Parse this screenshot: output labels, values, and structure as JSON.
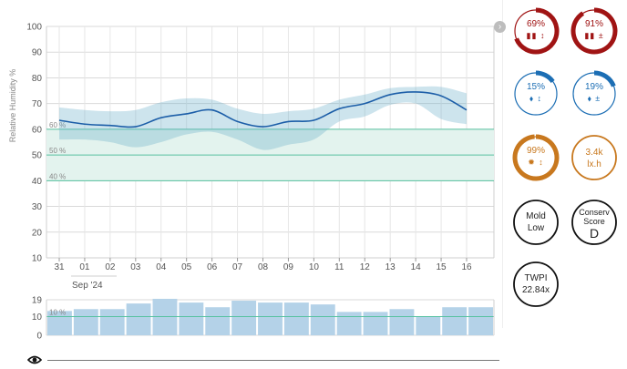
{
  "chart_data": [
    {
      "type": "line",
      "ylabel": "Relative Humidity %",
      "ylim": [
        10,
        100
      ],
      "yticks": [
        "10",
        "20",
        "30",
        "40",
        "50",
        "60",
        "70",
        "80",
        "90",
        "100"
      ],
      "categories": [
        "31",
        "01",
        "02",
        "03",
        "04",
        "05",
        "06",
        "07",
        "08",
        "09",
        "10",
        "11",
        "12",
        "13",
        "14",
        "15",
        "16"
      ],
      "xsublabel": "Sep '24",
      "grid": true,
      "target_bands": [
        {
          "label": "60 %",
          "value": 60
        },
        {
          "label": "50 %",
          "value": 50
        },
        {
          "label": "40 %",
          "value": 40
        }
      ],
      "target_zone": [
        40,
        60
      ],
      "series": [
        {
          "values": [
            63.5,
            62,
            61.5,
            61,
            64.5,
            66,
            67.5,
            63,
            61,
            63,
            63.5,
            68,
            70,
            73.5,
            74.5,
            73,
            67.5
          ],
          "color": "#1c5ea8"
        }
      ],
      "range_upper": [
        68.5,
        67.5,
        67,
        67.5,
        70.5,
        72,
        71.5,
        68,
        66,
        67,
        68,
        71.5,
        73.5,
        76,
        76.5,
        76.5,
        74
      ],
      "range_lower": [
        56,
        56,
        55,
        53,
        55,
        58,
        59,
        56,
        52,
        54,
        56,
        63,
        65,
        69.5,
        70,
        64,
        62
      ]
    },
    {
      "type": "bar",
      "categories": [
        "31",
        "01",
        "02",
        "03",
        "04",
        "05",
        "06",
        "07",
        "08",
        "09",
        "10",
        "11",
        "12",
        "13",
        "14",
        "15",
        "16"
      ],
      "values": [
        13,
        14,
        14,
        17,
        19.5,
        17.5,
        15,
        18.5,
        17.5,
        17.5,
        16.5,
        12.5,
        12.5,
        14,
        10,
        15,
        15
      ],
      "ylim": [
        0,
        19
      ],
      "yticks": [
        "0",
        "10",
        "19"
      ],
      "reference": {
        "label": "10 %",
        "value": 10
      }
    }
  ],
  "panel": {
    "rh_high": {
      "value": "69%",
      "icons": "▮▮ ↕",
      "pct": 69,
      "color": "#a01414"
    },
    "rh_high_var": {
      "value": "91%",
      "icons": "▮▮ ±",
      "pct": 91,
      "color": "#a01414"
    },
    "rh_low": {
      "value": "15%",
      "icons": "⬧ ↕",
      "pct": 15,
      "color": "#1c6eb4"
    },
    "rh_low_var": {
      "value": "19%",
      "icons": "⬧ ±",
      "pct": 19,
      "color": "#1c6eb4"
    },
    "light": {
      "value": "99%",
      "icons": "✹ ↕",
      "pct": 99,
      "color": "#c8781e"
    },
    "lux": {
      "line1": "3.4k",
      "line2": "lx.h",
      "color": "#c8781e"
    },
    "mold": {
      "line1": "Mold",
      "line2": "Low"
    },
    "conserv": {
      "line1": "Conserv",
      "line2": "Score",
      "grade": "D"
    },
    "twpi": {
      "line1": "TWPI",
      "line2": "22.84x"
    }
  }
}
